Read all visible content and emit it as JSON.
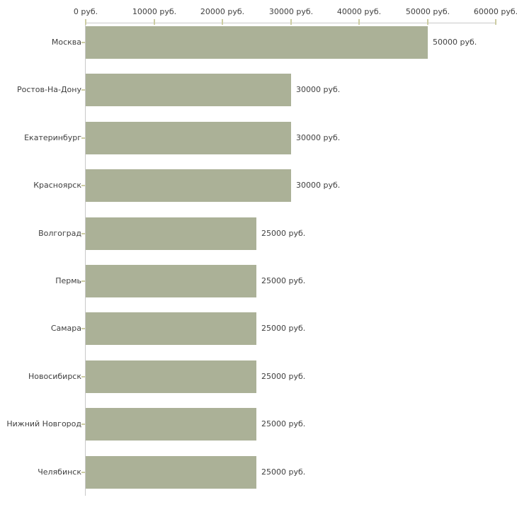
{
  "chart_data": {
    "type": "bar",
    "orientation": "horizontal",
    "title": "",
    "xlabel": "",
    "ylabel": "",
    "xlim": [
      0,
      60000
    ],
    "grid": false,
    "legend": false,
    "x_tick_values": [
      0,
      10000,
      20000,
      30000,
      40000,
      50000,
      60000
    ],
    "x_tick_labels": [
      "0 руб.",
      "10000 руб.",
      "20000 руб.",
      "30000 руб.",
      "40000 руб.",
      "50000 руб.",
      "60000 руб."
    ],
    "categories": [
      "Москва",
      "Ростов-На-Дону",
      "Екатеринбург",
      "Красноярск",
      "Волгоград",
      "Пермь",
      "Самара",
      "Новосибирск",
      "Нижний Новгород",
      "Челябинск"
    ],
    "values": [
      50000,
      30000,
      30000,
      30000,
      25000,
      25000,
      25000,
      25000,
      25000,
      25000
    ],
    "value_labels": [
      "50000 руб.",
      "30000 руб.",
      "30000 руб.",
      "30000 руб.",
      "25000 руб.",
      "25000 руб.",
      "25000 руб.",
      "25000 руб.",
      "25000 руб.",
      "25000 руб."
    ],
    "colors": {
      "bar": "#abb197",
      "axis_line": "#c9c9c9",
      "tick": "#cdcda3",
      "text": "#404040",
      "background": "#ffffff"
    }
  }
}
